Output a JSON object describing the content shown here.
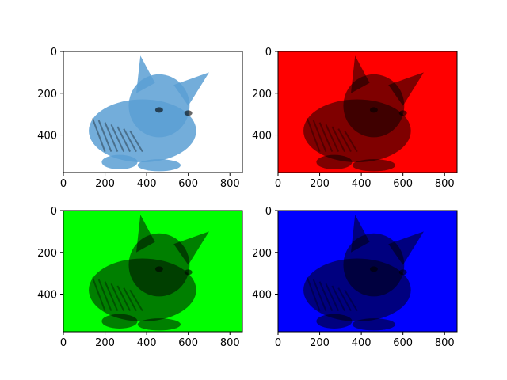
{
  "chart_data": [
    {
      "type": "image",
      "channel": "original",
      "tint": "#5a9fd4",
      "background": "#ffffff",
      "xlim": [
        0,
        860
      ],
      "ylim": [
        580,
        0
      ],
      "xticks": [
        0,
        200,
        400,
        600,
        800
      ],
      "yticks": [
        0,
        200,
        400
      ],
      "xtick_labels": [
        "0",
        "200",
        "400",
        "600",
        "800"
      ],
      "ytick_labels": [
        "0",
        "200",
        "400"
      ]
    },
    {
      "type": "image",
      "channel": "red",
      "tint": "#ff0000",
      "background": "#ff0000",
      "xlim": [
        0,
        860
      ],
      "ylim": [
        580,
        0
      ],
      "xticks": [
        0,
        200,
        400,
        600,
        800
      ],
      "yticks": [
        0,
        200,
        400
      ],
      "xtick_labels": [
        "0",
        "200",
        "400",
        "600",
        "800"
      ],
      "ytick_labels": [
        "0",
        "200",
        "400"
      ]
    },
    {
      "type": "image",
      "channel": "green",
      "tint": "#00ff00",
      "background": "#00ff00",
      "xlim": [
        0,
        860
      ],
      "ylim": [
        580,
        0
      ],
      "xticks": [
        0,
        200,
        400,
        600,
        800
      ],
      "yticks": [
        0,
        200,
        400
      ],
      "xtick_labels": [
        "0",
        "200",
        "400",
        "600",
        "800"
      ],
      "ytick_labels": [
        "0",
        "200",
        "400"
      ]
    },
    {
      "type": "image",
      "channel": "blue",
      "tint": "#0000ff",
      "background": "#0000ff",
      "xlim": [
        0,
        860
      ],
      "ylim": [
        580,
        0
      ],
      "xticks": [
        0,
        200,
        400,
        600,
        800
      ],
      "yticks": [
        0,
        200,
        400
      ],
      "xtick_labels": [
        "0",
        "200",
        "400",
        "600",
        "800"
      ],
      "ytick_labels": [
        "0",
        "200",
        "400"
      ]
    }
  ]
}
